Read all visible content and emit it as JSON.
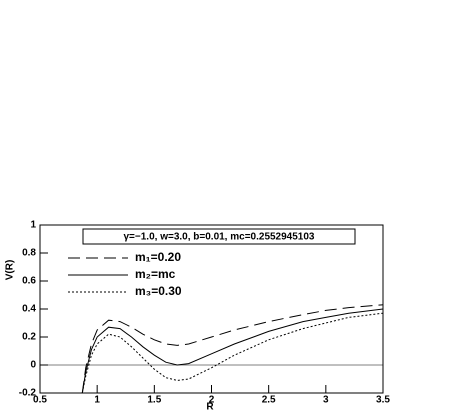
{
  "chart_data": {
    "type": "line",
    "title": "γ=−1.0, w=3.0, b=0.01, mc=0.2552945103",
    "x_label": "R",
    "y_label": "V(R)",
    "x": [
      0.87,
      0.9,
      0.95,
      1.0,
      1.1,
      1.2,
      1.3,
      1.4,
      1.5,
      1.6,
      1.7,
      1.8,
      2.0,
      2.2,
      2.5,
      2.8,
      3.0,
      3.2,
      3.5
    ],
    "series": [
      {
        "name": "m₁=0.20",
        "color": "#000000",
        "dash": "12,6",
        "values": [
          -0.2,
          -0.02,
          0.15,
          0.25,
          0.32,
          0.31,
          0.27,
          0.22,
          0.18,
          0.15,
          0.14,
          0.15,
          0.2,
          0.25,
          0.31,
          0.36,
          0.39,
          0.41,
          0.43
        ]
      },
      {
        "name": "m₂=mc",
        "color": "#000000",
        "dash": "none",
        "values": [
          -0.2,
          -0.05,
          0.11,
          0.2,
          0.27,
          0.26,
          0.2,
          0.13,
          0.07,
          0.02,
          0.0,
          0.01,
          0.08,
          0.15,
          0.24,
          0.31,
          0.34,
          0.37,
          0.4
        ]
      },
      {
        "name": "m₃=0.30",
        "color": "#000000",
        "dash": "2,2",
        "values": [
          -0.2,
          -0.08,
          0.07,
          0.15,
          0.22,
          0.2,
          0.13,
          0.05,
          -0.03,
          -0.09,
          -0.11,
          -0.1,
          -0.02,
          0.07,
          0.18,
          0.26,
          0.3,
          0.34,
          0.37
        ]
      }
    ],
    "reference_line": 0,
    "xlim": [
      0.5,
      3.5
    ],
    "xticks": [
      0.5,
      1,
      1.5,
      2,
      2.5,
      3,
      3.5
    ],
    "ylim": [
      -0.2,
      1
    ],
    "yticks": [
      -0.2,
      0,
      0.2,
      0.4,
      0.6,
      0.8,
      1
    ]
  }
}
